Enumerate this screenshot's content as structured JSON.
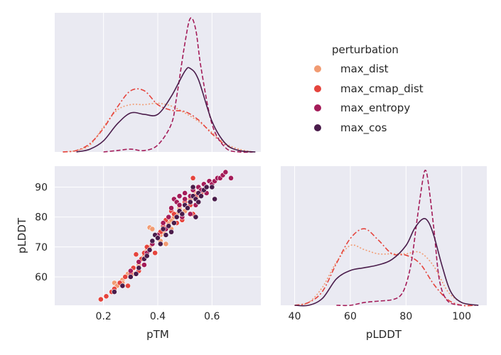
{
  "chart_data": {
    "type": "pairplot",
    "colors": {
      "max_dist": "#f19b72",
      "max_cmap_dist": "#e5443d",
      "max_entropy": "#a41c59",
      "max_cos": "#4a1c4b",
      "panel_bg": "#eaeaf2",
      "grid": "#ffffff"
    },
    "legend": {
      "title": "perturbation",
      "placement": "upper-right",
      "entries": [
        "max_dist",
        "max_cmap_dist",
        "max_entropy",
        "max_cos"
      ]
    },
    "panels": {
      "ptm_kde": {
        "type": "kde",
        "xlim": [
          0.02,
          0.78
        ],
        "grid": true,
        "ylim": [
          0,
          1.0
        ],
        "series": [
          {
            "name": "max_dist",
            "style": "dotted",
            "x": [
              0.05,
              0.1,
              0.15,
              0.2,
              0.25,
              0.3,
              0.35,
              0.4,
              0.45,
              0.5,
              0.55,
              0.6,
              0.65,
              0.7,
              0.75
            ],
            "y": [
              0.0,
              0.01,
              0.05,
              0.18,
              0.3,
              0.34,
              0.34,
              0.35,
              0.33,
              0.28,
              0.22,
              0.14,
              0.06,
              0.02,
              0.0
            ]
          },
          {
            "name": "max_cmap_dist",
            "style": "dashdot",
            "x": [
              0.05,
              0.1,
              0.15,
              0.2,
              0.25,
              0.3,
              0.35,
              0.4,
              0.45,
              0.5,
              0.55,
              0.6,
              0.65,
              0.7,
              0.75
            ],
            "y": [
              0.0,
              0.01,
              0.06,
              0.17,
              0.32,
              0.44,
              0.44,
              0.34,
              0.3,
              0.29,
              0.23,
              0.13,
              0.05,
              0.01,
              0.0
            ]
          },
          {
            "name": "max_entropy",
            "style": "dashed",
            "x": [
              0.2,
              0.25,
              0.3,
              0.35,
              0.4,
              0.45,
              0.47,
              0.5,
              0.52,
              0.54,
              0.56,
              0.6,
              0.65,
              0.7,
              0.75
            ],
            "y": [
              0.0,
              0.01,
              0.02,
              0.01,
              0.05,
              0.2,
              0.4,
              0.78,
              0.96,
              0.88,
              0.6,
              0.2,
              0.03,
              0.0,
              0.0
            ]
          },
          {
            "name": "max_cos",
            "style": "solid",
            "x": [
              0.1,
              0.15,
              0.2,
              0.25,
              0.3,
              0.35,
              0.4,
              0.45,
              0.5,
              0.52,
              0.55,
              0.6,
              0.65,
              0.7,
              0.76
            ],
            "y": [
              0.0,
              0.02,
              0.08,
              0.2,
              0.28,
              0.27,
              0.27,
              0.4,
              0.58,
              0.6,
              0.52,
              0.22,
              0.06,
              0.01,
              0.0
            ]
          }
        ]
      },
      "scatter": {
        "type": "scatter",
        "xlabel": "pTM",
        "ylabel": "pLDDT",
        "xlim": [
          0.02,
          0.78
        ],
        "ylim": [
          50.5,
          97
        ],
        "xticks": [
          0.2,
          0.4,
          0.6
        ],
        "yticks": [
          60,
          70,
          80,
          90
        ],
        "grid": true,
        "series": [
          {
            "name": "max_dist",
            "points": [
              [
                0.23,
                55
              ],
              [
                0.24,
                58
              ],
              [
                0.25,
                57
              ],
              [
                0.27,
                59
              ],
              [
                0.28,
                60
              ],
              [
                0.29,
                61
              ],
              [
                0.3,
                62
              ],
              [
                0.31,
                63
              ],
              [
                0.33,
                64
              ],
              [
                0.34,
                66
              ],
              [
                0.35,
                67
              ],
              [
                0.36,
                68
              ],
              [
                0.37,
                70
              ],
              [
                0.38,
                72
              ],
              [
                0.37,
                76.5
              ],
              [
                0.38,
                76
              ],
              [
                0.4,
                73
              ],
              [
                0.41,
                74
              ],
              [
                0.42,
                75
              ],
              [
                0.43,
                71
              ],
              [
                0.44,
                78
              ],
              [
                0.45,
                79
              ],
              [
                0.46,
                80
              ],
              [
                0.47,
                81
              ],
              [
                0.48,
                83
              ],
              [
                0.5,
                84
              ],
              [
                0.52,
                86
              ],
              [
                0.54,
                88
              ],
              [
                0.56,
                89
              ],
              [
                0.58,
                90
              ],
              [
                0.6,
                91
              ],
              [
                0.27,
                58
              ],
              [
                0.31,
                61
              ],
              [
                0.36,
                69
              ],
              [
                0.41,
                72
              ],
              [
                0.45,
                76
              ],
              [
                0.5,
                82
              ],
              [
                0.55,
                87
              ]
            ]
          },
          {
            "name": "max_cmap_dist",
            "points": [
              [
                0.19,
                52.5
              ],
              [
                0.21,
                53.5
              ],
              [
                0.23,
                55
              ],
              [
                0.24,
                56
              ],
              [
                0.26,
                58
              ],
              [
                0.28,
                60
              ],
              [
                0.3,
                61
              ],
              [
                0.31,
                63
              ],
              [
                0.32,
                67.5
              ],
              [
                0.34,
                66
              ],
              [
                0.35,
                68
              ],
              [
                0.36,
                70
              ],
              [
                0.38,
                71
              ],
              [
                0.39,
                68
              ],
              [
                0.4,
                73
              ],
              [
                0.41,
                75
              ],
              [
                0.42,
                77
              ],
              [
                0.43,
                79
              ],
              [
                0.44,
                80
              ],
              [
                0.45,
                82
              ],
              [
                0.46,
                81
              ],
              [
                0.48,
                84
              ],
              [
                0.49,
                79
              ],
              [
                0.5,
                85
              ],
              [
                0.52,
                84
              ],
              [
                0.53,
                93
              ],
              [
                0.54,
                87
              ],
              [
                0.56,
                88
              ],
              [
                0.58,
                90
              ],
              [
                0.6,
                91
              ],
              [
                0.53,
                81
              ],
              [
                0.47,
                78
              ],
              [
                0.33,
                62
              ],
              [
                0.29,
                57
              ]
            ]
          },
          {
            "name": "max_entropy",
            "points": [
              [
                0.3,
                62
              ],
              [
                0.33,
                65
              ],
              [
                0.36,
                68
              ],
              [
                0.38,
                71
              ],
              [
                0.4,
                74
              ],
              [
                0.42,
                78
              ],
              [
                0.44,
                80
              ],
              [
                0.45,
                83
              ],
              [
                0.46,
                86
              ],
              [
                0.47,
                85
              ],
              [
                0.48,
                84
              ],
              [
                0.5,
                86
              ],
              [
                0.5,
                88
              ],
              [
                0.52,
                87
              ],
              [
                0.53,
                89
              ],
              [
                0.55,
                90
              ],
              [
                0.56,
                89
              ],
              [
                0.57,
                91
              ],
              [
                0.58,
                90
              ],
              [
                0.59,
                92
              ],
              [
                0.6,
                91
              ],
              [
                0.61,
                92
              ],
              [
                0.62,
                93
              ],
              [
                0.63,
                93
              ],
              [
                0.64,
                94
              ],
              [
                0.65,
                95
              ],
              [
                0.67,
                93
              ],
              [
                0.54,
                84
              ],
              [
                0.52,
                81
              ],
              [
                0.49,
                80
              ],
              [
                0.43,
                76
              ],
              [
                0.35,
                64
              ],
              [
                0.48,
                87
              ],
              [
                0.58,
                88
              ]
            ]
          },
          {
            "name": "max_cos",
            "points": [
              [
                0.24,
                55
              ],
              [
                0.27,
                57
              ],
              [
                0.3,
                60
              ],
              [
                0.32,
                61
              ],
              [
                0.33,
                63
              ],
              [
                0.35,
                66
              ],
              [
                0.37,
                69
              ],
              [
                0.38,
                72
              ],
              [
                0.39,
                74
              ],
              [
                0.4,
                73
              ],
              [
                0.42,
                76
              ],
              [
                0.43,
                74
              ],
              [
                0.44,
                77
              ],
              [
                0.46,
                78
              ],
              [
                0.47,
                80
              ],
              [
                0.48,
                82
              ],
              [
                0.49,
                81
              ],
              [
                0.5,
                84
              ],
              [
                0.51,
                83
              ],
              [
                0.52,
                85
              ],
              [
                0.53,
                87
              ],
              [
                0.54,
                86
              ],
              [
                0.55,
                88
              ],
              [
                0.56,
                87
              ],
              [
                0.57,
                89
              ],
              [
                0.58,
                90
              ],
              [
                0.6,
                90
              ],
              [
                0.61,
                86
              ],
              [
                0.53,
                90
              ],
              [
                0.54,
                80
              ],
              [
                0.45,
                75
              ],
              [
                0.41,
                71
              ],
              [
                0.36,
                67
              ],
              [
                0.55,
                85
              ]
            ]
          }
        ]
      },
      "plddt_kde": {
        "type": "kde",
        "xlabel": "pLDDT",
        "xlim": [
          35,
          109
        ],
        "xticks": [
          40,
          60,
          80,
          100
        ],
        "grid": true,
        "ylim": [
          0,
          1.0
        ],
        "series": [
          {
            "name": "max_dist",
            "style": "dotted",
            "x": [
              40,
              45,
              50,
              55,
              60,
              65,
              70,
              75,
              80,
              85,
              90,
              95,
              100,
              105
            ],
            "y": [
              0.0,
              0.02,
              0.13,
              0.31,
              0.43,
              0.4,
              0.37,
              0.37,
              0.37,
              0.38,
              0.28,
              0.1,
              0.02,
              0.0
            ]
          },
          {
            "name": "max_cmap_dist",
            "style": "dashdot",
            "x": [
              40,
              45,
              50,
              55,
              60,
              65,
              70,
              75,
              80,
              85,
              90,
              95,
              100,
              105
            ],
            "y": [
              0.0,
              0.02,
              0.1,
              0.3,
              0.48,
              0.55,
              0.47,
              0.37,
              0.36,
              0.3,
              0.15,
              0.04,
              0.0,
              0.0
            ]
          },
          {
            "name": "max_entropy",
            "style": "dashed",
            "x": [
              55,
              60,
              65,
              70,
              75,
              78,
              80,
              82,
              84,
              86,
              87,
              88,
              90,
              92,
              95,
              100
            ],
            "y": [
              0.0,
              0.0,
              0.02,
              0.03,
              0.04,
              0.07,
              0.15,
              0.32,
              0.62,
              0.9,
              0.97,
              0.88,
              0.55,
              0.18,
              0.03,
              0.0
            ]
          },
          {
            "name": "max_cos",
            "style": "solid",
            "x": [
              40,
              45,
              50,
              55,
              60,
              65,
              70,
              75,
              80,
              83,
              86,
              88,
              90,
              93,
              96,
              100,
              106
            ],
            "y": [
              0.0,
              0.0,
              0.05,
              0.19,
              0.25,
              0.27,
              0.29,
              0.33,
              0.43,
              0.55,
              0.62,
              0.6,
              0.5,
              0.28,
              0.1,
              0.02,
              0.0
            ]
          }
        ]
      }
    }
  }
}
